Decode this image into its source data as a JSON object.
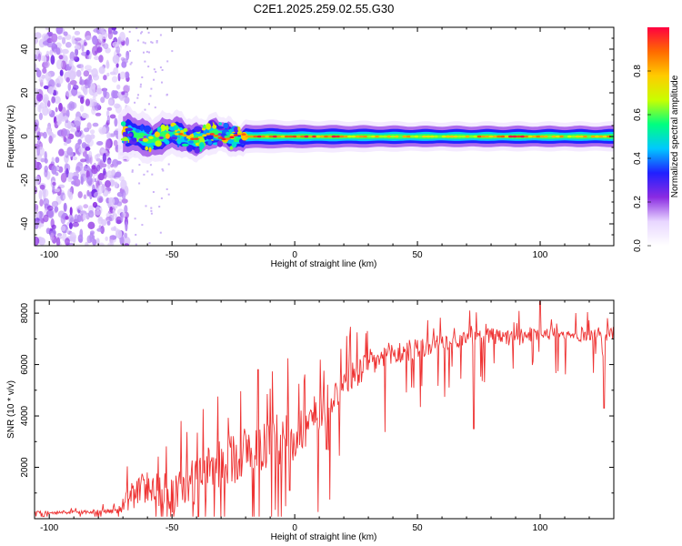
{
  "title": "C2E1.2025.259.02.55.G30",
  "colors": {
    "snr_line": "#ee3333",
    "spectral_core": "#ff2a2a",
    "scatter": "#7b2ff7",
    "colormap": [
      "#ffffff",
      "#e8d6ff",
      "#8a2be2",
      "#2020ff",
      "#00c8ff",
      "#00ff80",
      "#c8ff00",
      "#ffcc00",
      "#ff6a00",
      "#ff0040"
    ]
  },
  "chart_data": [
    {
      "type": "heatmap",
      "name": "spectrogram",
      "xlabel": "Height of straight line (km)",
      "ylabel": "Frequency (Hz)",
      "xlim": [
        -106,
        130
      ],
      "ylim": [
        -50,
        50
      ],
      "x_ticks": [
        -100,
        -50,
        0,
        50,
        100
      ],
      "y_ticks": [
        -40,
        -20,
        0,
        20,
        40
      ],
      "colorbar": {
        "label": "Normalized spectral amplitude",
        "range": [
          0,
          1
        ],
        "ticks": [
          0.0,
          0.2,
          0.4,
          0.6,
          0.8
        ]
      },
      "features": {
        "noise_region_km": [
          -106,
          -68
        ],
        "sparse_region_km": [
          -68,
          -50
        ],
        "signal_start_km": -70,
        "central_frequency_hz": 0,
        "core_width_hz": [
          {
            "x": -68,
            "half_width": 6
          },
          {
            "x": -40,
            "half_width": 5
          },
          {
            "x": -20,
            "half_width": 4
          },
          {
            "x": 50,
            "half_width": 3.5
          },
          {
            "x": 130,
            "half_width": 3.5
          }
        ]
      }
    },
    {
      "type": "line",
      "name": "snr",
      "xlabel": "Height of straight line (km)",
      "ylabel": "SNR (10 * v/v)",
      "xlim": [
        -106,
        130
      ],
      "ylim": [
        0,
        8500
      ],
      "x_ticks": [
        -100,
        -50,
        0,
        50,
        100
      ],
      "y_ticks": [
        2000,
        4000,
        6000,
        8000
      ],
      "envelope": {
        "x": [
          -106,
          -90,
          -72,
          -68,
          -60,
          -50,
          -40,
          -30,
          -20,
          -10,
          0,
          10,
          20,
          30,
          40,
          50,
          60,
          70,
          80,
          90,
          100,
          110,
          120,
          130
        ],
        "y": [
          250,
          250,
          300,
          800,
          1300,
          1000,
          1500,
          2200,
          2600,
          3000,
          3200,
          4200,
          5300,
          6000,
          6400,
          6600,
          6800,
          7000,
          7100,
          7000,
          7300,
          7100,
          7200,
          7200
        ]
      },
      "noise_amplitude": {
        "x": [
          -106,
          -72,
          -68,
          -40,
          -20,
          0,
          20,
          60,
          100,
          130
        ],
        "y": [
          100,
          150,
          900,
          1500,
          1800,
          1600,
          1100,
          600,
          500,
          450
        ]
      },
      "notable_spikes": [
        {
          "x": -15,
          "y": 5800
        },
        {
          "x": -2,
          "y": 1100
        },
        {
          "x": 13,
          "y": 2700
        },
        {
          "x": 73,
          "y": 3500
        },
        {
          "x": 100,
          "y": 8450
        },
        {
          "x": 126,
          "y": 4300
        }
      ]
    }
  ]
}
